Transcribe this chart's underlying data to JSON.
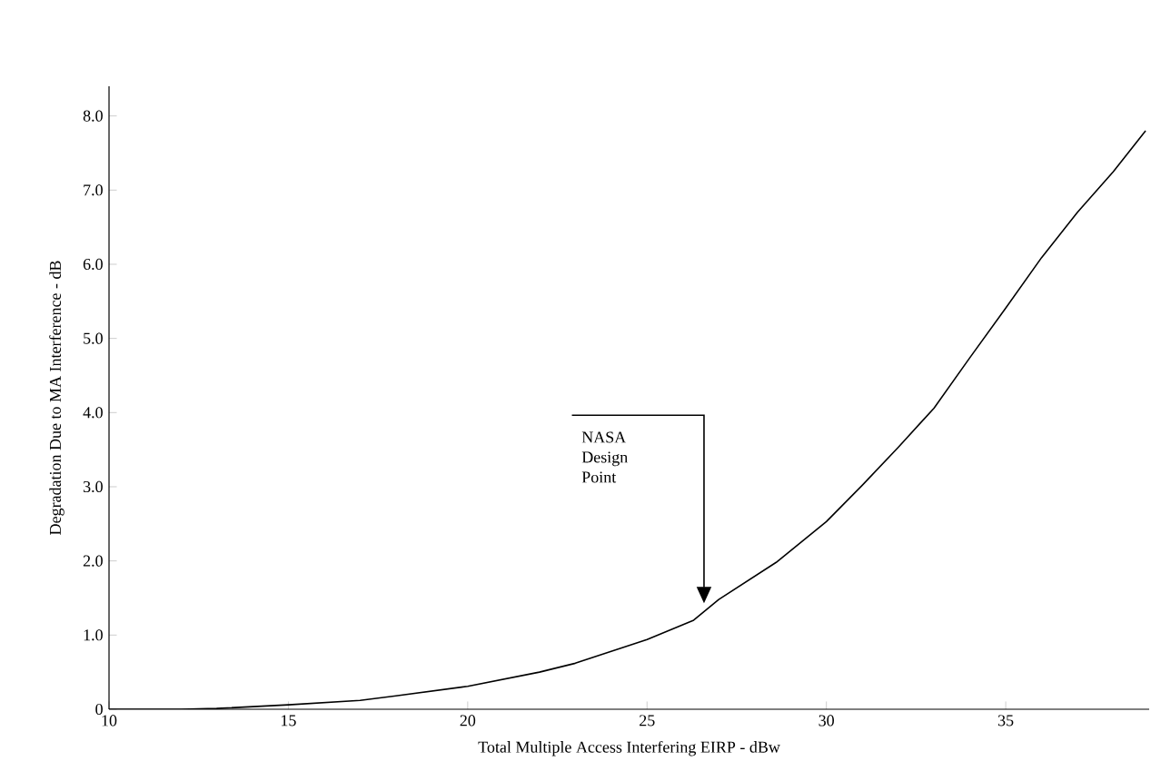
{
  "chart_data": {
    "type": "line",
    "xlabel": "Total Multiple Access Interfering EIRP - dBw",
    "ylabel": "Degradation Due to MA Interference - dB",
    "x": [
      10,
      12,
      13,
      15,
      17,
      18,
      20,
      22,
      23,
      25,
      26.3,
      27,
      28.6,
      30,
      31,
      32,
      33,
      34,
      35,
      36,
      37,
      38,
      38.9
    ],
    "values": [
      0,
      0,
      0.01,
      0.06,
      0.12,
      0.18,
      0.31,
      0.5,
      0.62,
      0.94,
      1.2,
      1.48,
      1.98,
      2.53,
      3.02,
      3.53,
      4.06,
      4.74,
      5.41,
      6.09,
      6.7,
      7.25,
      7.8
    ],
    "color": "#000000",
    "marker": "none",
    "line_style": "solid",
    "xlim": [
      10,
      39
    ],
    "ylim": [
      0,
      8.4
    ],
    "xticks": [
      10,
      15,
      20,
      25,
      30,
      35
    ],
    "yticks": [
      0,
      {
        "value": 1,
        "label": "1.0"
      },
      {
        "value": 2,
        "label": "2.0"
      },
      {
        "value": 3,
        "label": "3.0"
      },
      {
        "value": 4,
        "label": "4.0"
      },
      {
        "value": 5,
        "label": "5.0"
      },
      {
        "value": 6,
        "label": "6.0"
      },
      {
        "value": 7,
        "label": "7.0"
      },
      {
        "value": 8,
        "label": "8.0"
      }
    ],
    "annotations": [
      "NASA Design Point"
    ]
  }
}
